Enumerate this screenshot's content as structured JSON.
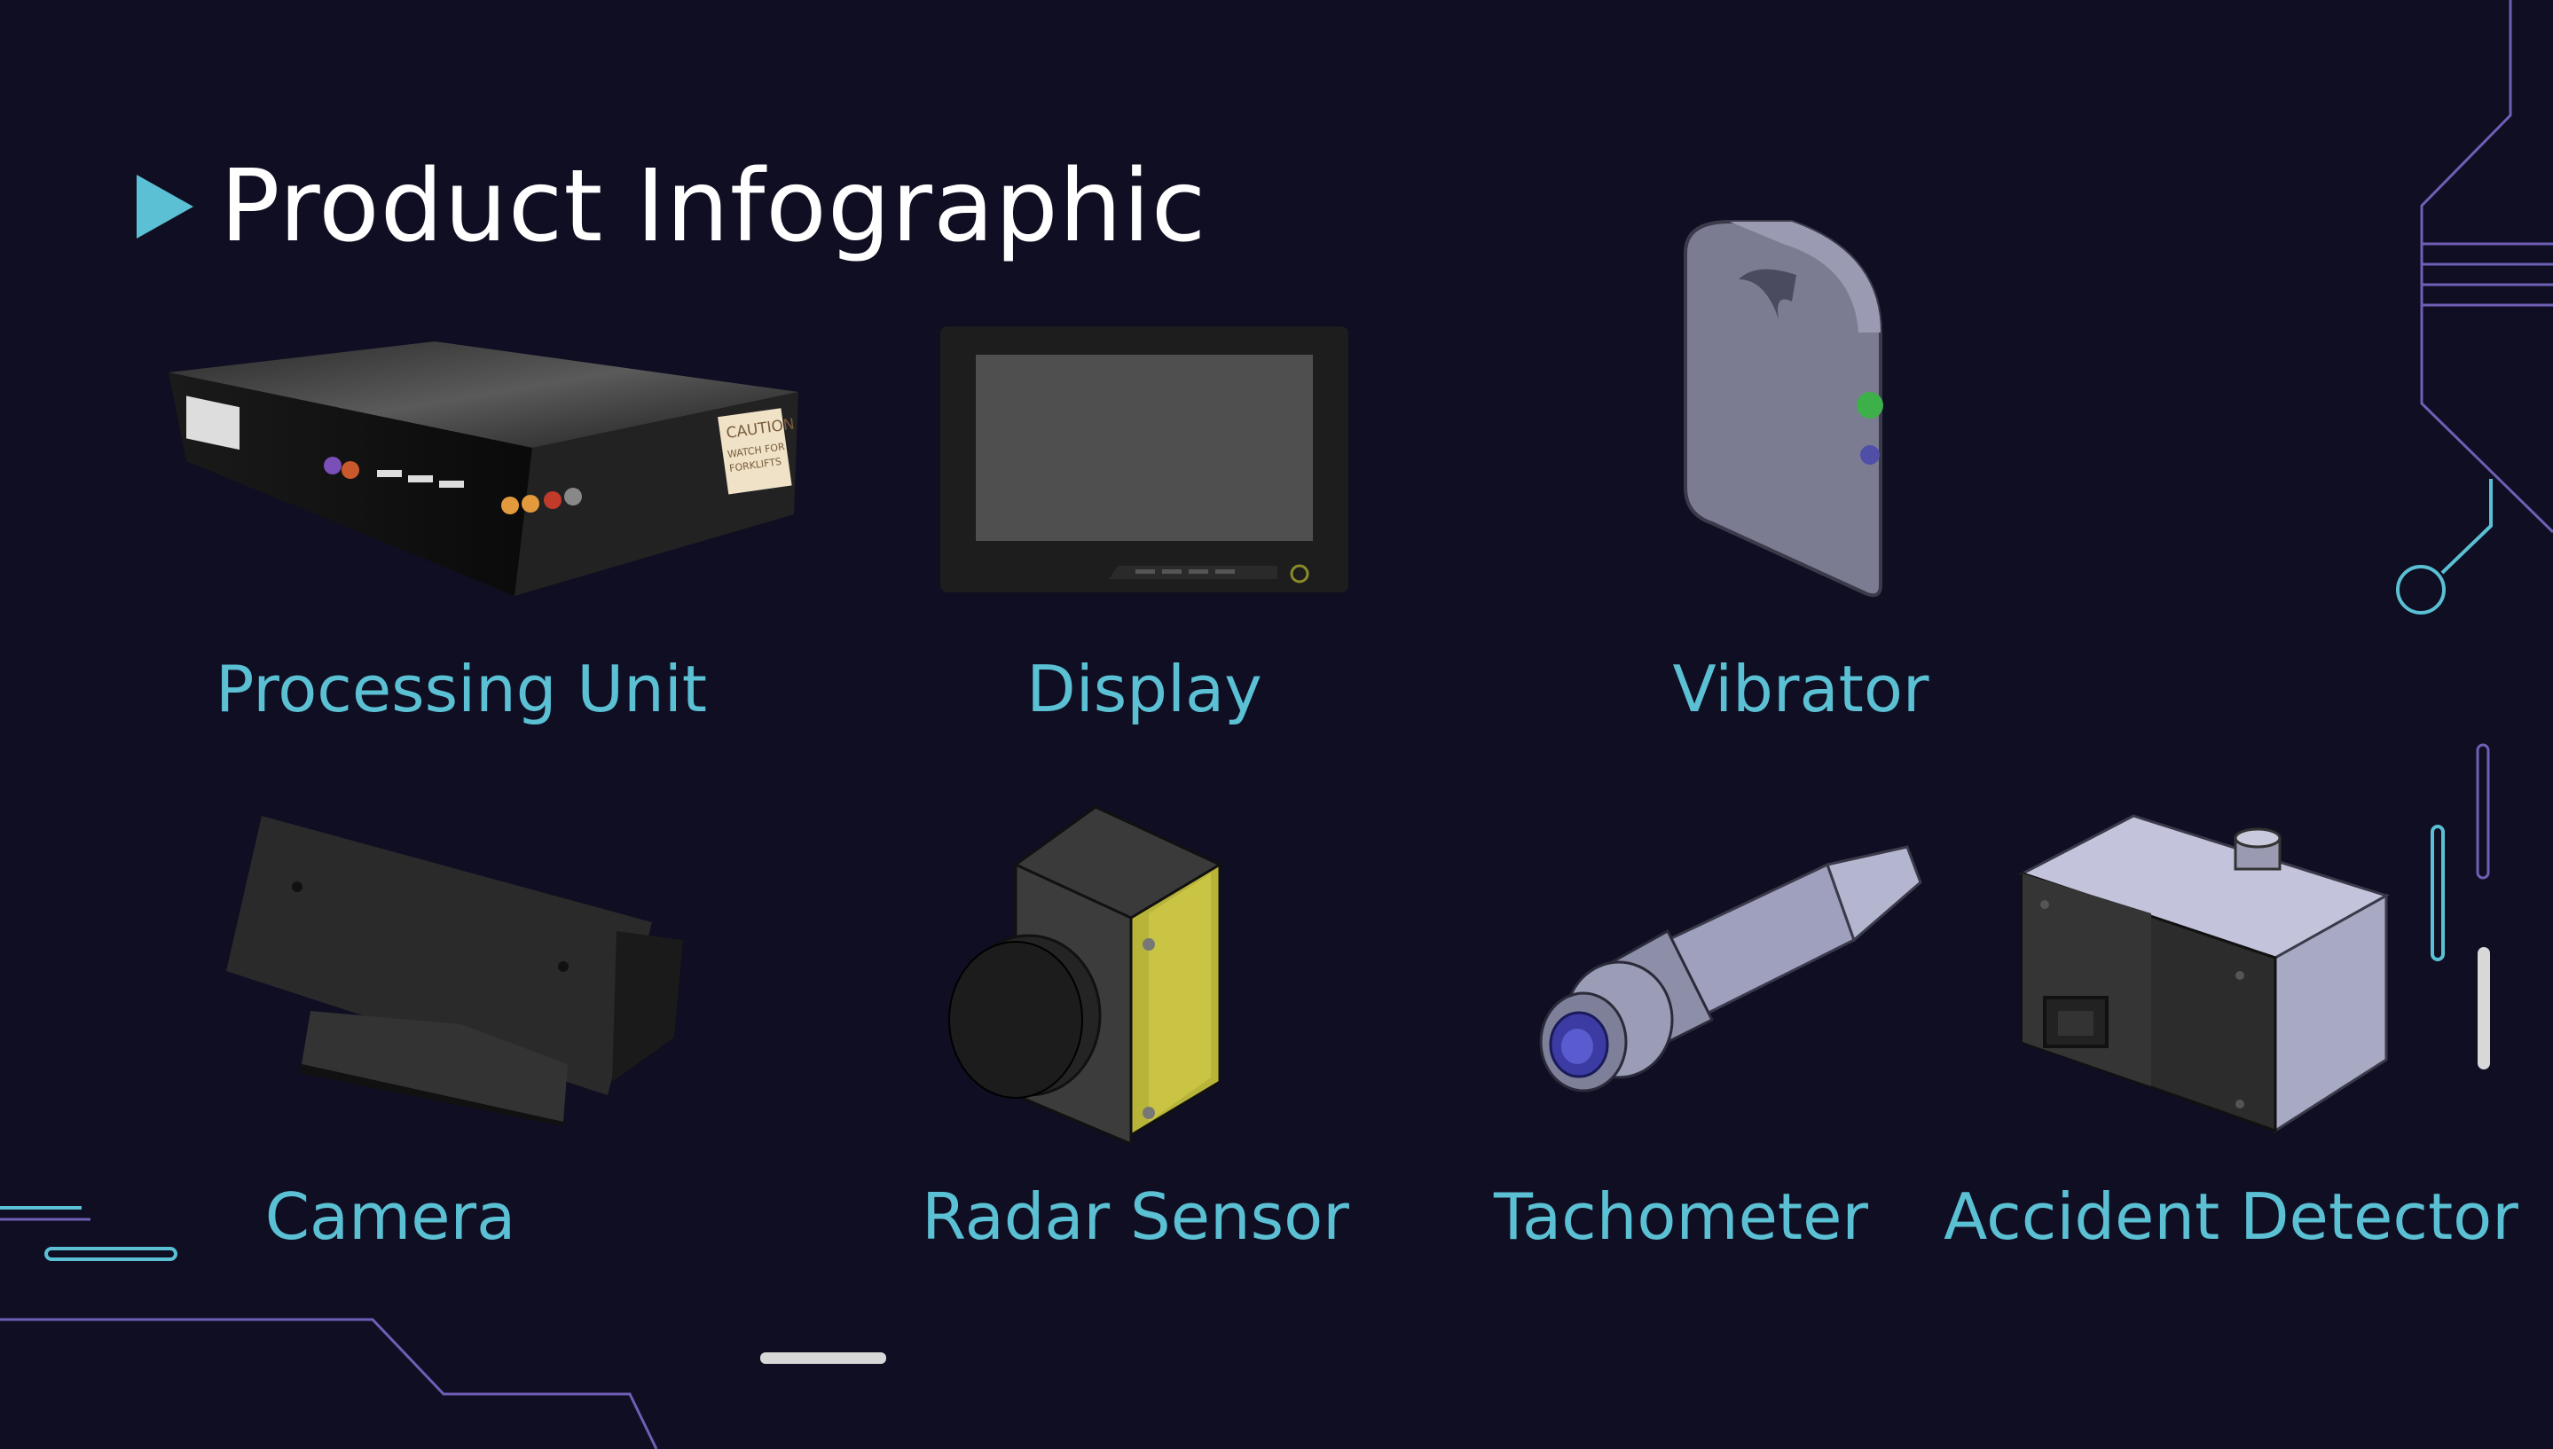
{
  "title": "Product Infographic",
  "products": [
    {
      "name": "Processing Unit",
      "icon": "processing-unit-icon"
    },
    {
      "name": "Display",
      "icon": "display-icon"
    },
    {
      "name": "Vibrator",
      "icon": "vibrator-icon"
    },
    {
      "name": "Camera",
      "icon": "camera-icon"
    },
    {
      "name": "Radar Sensor",
      "icon": "radar-sensor-icon"
    },
    {
      "name": "Tachometer",
      "icon": "tachometer-icon"
    },
    {
      "name": "Accident Detector",
      "icon": "accident-detector-icon"
    }
  ],
  "caution_label": {
    "line1": "CAUTION",
    "line2": "WATCH FOR",
    "line3": "FORKLIFTS"
  },
  "colors": {
    "background": "#0f0e22",
    "accent": "#5bc0d3",
    "title": "#ffffff",
    "line": "#6f5fb5"
  }
}
